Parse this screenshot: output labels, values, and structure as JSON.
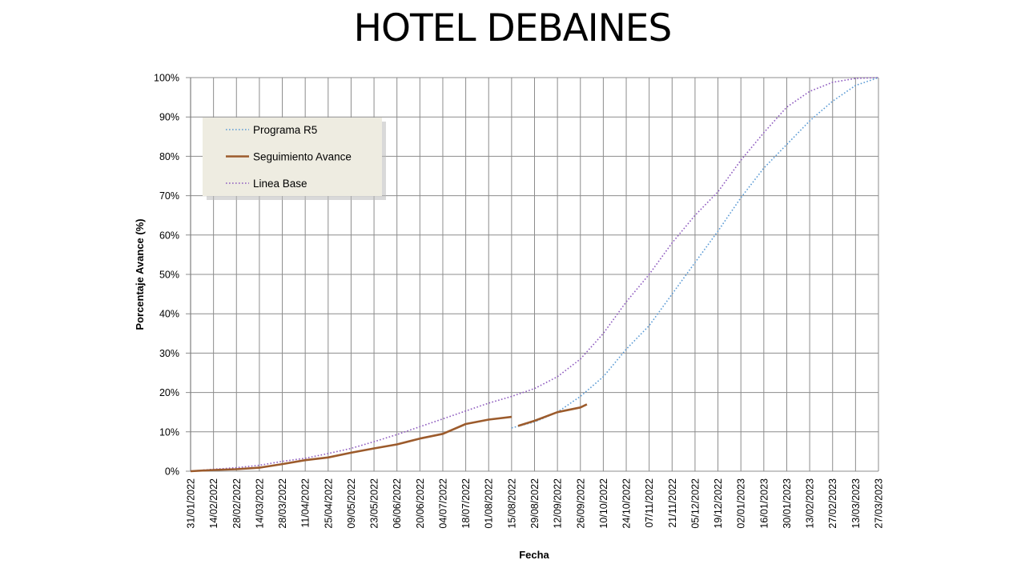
{
  "title": "HOTEL DEBAINES",
  "chart_data": {
    "type": "line",
    "title": "HOTEL DEBAINES",
    "xlabel": "Fecha",
    "ylabel": "Porcentaje Avance (%)",
    "x_ticks": [
      "31/01/2022",
      "14/02/2022",
      "28/02/2022",
      "14/03/2022",
      "28/03/2022",
      "11/04/2022",
      "25/04/2022",
      "09/05/2022",
      "23/05/2022",
      "06/06/2022",
      "20/06/2022",
      "04/07/2022",
      "18/07/2022",
      "01/08/2022",
      "15/08/2022",
      "29/08/2022",
      "12/09/2022",
      "26/09/2022",
      "10/10/2022",
      "24/10/2022",
      "07/11/2022",
      "21/11/2022",
      "05/12/2022",
      "19/12/2022",
      "02/01/2023",
      "16/01/2023",
      "30/01/2023",
      "13/02/2023",
      "27/02/2023",
      "13/03/2023",
      "27/03/2023"
    ],
    "y_ticks": [
      "0%",
      "10%",
      "20%",
      "30%",
      "40%",
      "50%",
      "60%",
      "70%",
      "80%",
      "90%",
      "100%"
    ],
    "xlim": [
      "31/01/2022",
      "27/03/2023"
    ],
    "ylim": [
      0,
      100
    ],
    "grid": true,
    "legend_position": "top-left",
    "series": [
      {
        "name": "Programa R5",
        "style": "dotted",
        "color": "#5b9bd5",
        "x": [
          "15/08/2022",
          "29/08/2022",
          "12/09/2022",
          "26/09/2022",
          "10/10/2022",
          "24/10/2022",
          "07/11/2022",
          "21/11/2022",
          "05/12/2022",
          "19/12/2022",
          "02/01/2023",
          "16/01/2023",
          "30/01/2023",
          "13/02/2023",
          "27/02/2023",
          "13/03/2023",
          "27/03/2023"
        ],
        "values": [
          11,
          12.5,
          15,
          19,
          24,
          31,
          37,
          45,
          53,
          61,
          69.5,
          77,
          83,
          89,
          94,
          98,
          100
        ]
      },
      {
        "name": "Seguimiento Avance",
        "style": "solid",
        "color": "#9c5b2c",
        "segments": [
          {
            "x": [
              "31/01/2022",
              "14/02/2022",
              "28/02/2022",
              "14/03/2022",
              "28/03/2022",
              "11/04/2022",
              "25/04/2022",
              "09/05/2022",
              "23/05/2022",
              "06/06/2022",
              "20/06/2022",
              "04/07/2022",
              "18/07/2022",
              "01/08/2022",
              "15/08/2022"
            ],
            "values": [
              0,
              0.3,
              0.5,
              0.9,
              1.8,
              2.8,
              3.5,
              4.7,
              5.8,
              6.8,
              8.3,
              9.5,
              12.0,
              13.1,
              13.8
            ]
          },
          {
            "x": [
              "19/08/2022",
              "29/08/2022",
              "12/09/2022",
              "26/09/2022",
              "30/09/2022"
            ],
            "values": [
              11.5,
              12.8,
              15.0,
              16.2,
              17.0
            ]
          }
        ]
      },
      {
        "name": "Linea Base",
        "style": "dotted",
        "color": "#8e5bbf",
        "x": [
          "31/01/2022",
          "14/02/2022",
          "28/02/2022",
          "14/03/2022",
          "28/03/2022",
          "11/04/2022",
          "25/04/2022",
          "09/05/2022",
          "23/05/2022",
          "06/06/2022",
          "20/06/2022",
          "04/07/2022",
          "18/07/2022",
          "01/08/2022",
          "15/08/2022",
          "29/08/2022",
          "12/09/2022",
          "26/09/2022",
          "10/10/2022",
          "24/10/2022",
          "07/11/2022",
          "21/11/2022",
          "05/12/2022",
          "19/12/2022",
          "02/01/2023",
          "16/01/2023",
          "30/01/2023",
          "13/02/2023",
          "27/02/2023",
          "13/03/2023",
          "27/03/2023"
        ],
        "values": [
          0,
          0.5,
          0.9,
          1.5,
          2.5,
          3.3,
          4.5,
          5.8,
          7.5,
          9.3,
          11.3,
          13.3,
          15.3,
          17.3,
          19.0,
          21,
          24,
          28.5,
          35,
          43,
          50,
          58,
          65,
          71,
          79,
          86,
          92.5,
          96.5,
          98.8,
          99.8,
          100
        ]
      }
    ]
  }
}
